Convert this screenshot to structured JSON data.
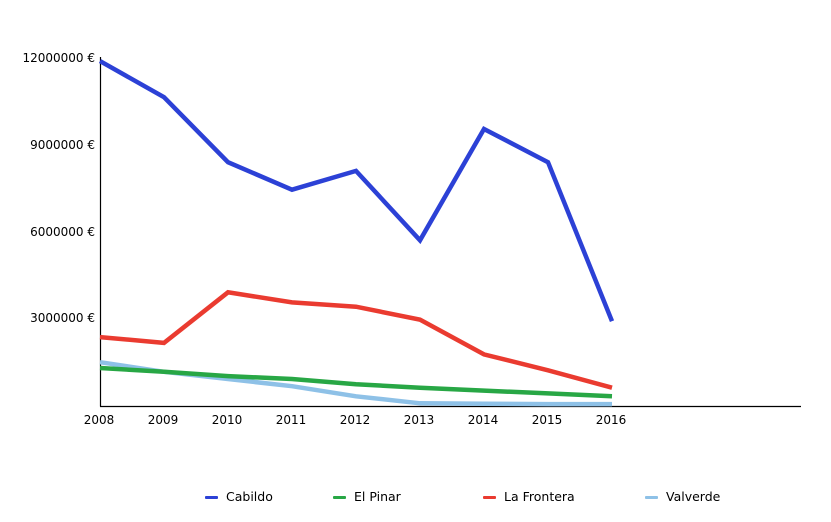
{
  "chart_data": {
    "type": "line",
    "title": "",
    "xlabel": "",
    "ylabel": "",
    "currency_suffix": "€",
    "grid": false,
    "legend_position": "bottom",
    "categories": [
      "2008",
      "2009",
      "2010",
      "2011",
      "2012",
      "2013",
      "2014",
      "2015",
      "2016"
    ],
    "y_ticks": [
      12000000,
      9000000,
      6000000,
      3000000
    ],
    "y_tick_labels": [
      "12000000 €",
      "9000000 €",
      "6000000 €",
      "3000000 €"
    ],
    "ylim": [
      0,
      12100000
    ],
    "axis_color": "#000000",
    "series": [
      {
        "name": "Cabildo",
        "color": "#2c41d6",
        "values": [
          11900000,
          10650000,
          8400000,
          7450000,
          8100000,
          5700000,
          9550000,
          8400000,
          2900000
        ]
      },
      {
        "name": "El Pinar",
        "color": "#28a745",
        "values": [
          1280000,
          1150000,
          1000000,
          900000,
          720000,
          600000,
          500000,
          400000,
          300000
        ]
      },
      {
        "name": "La Frontera",
        "color": "#ea3b30",
        "values": [
          2350000,
          2150000,
          3900000,
          3550000,
          3400000,
          2950000,
          1750000,
          1200000,
          600000
        ]
      },
      {
        "name": "Valverde",
        "color": "#8ec1e7",
        "values": [
          1480000,
          1150000,
          900000,
          650000,
          300000,
          60000,
          40000,
          30000,
          30000
        ]
      }
    ]
  }
}
